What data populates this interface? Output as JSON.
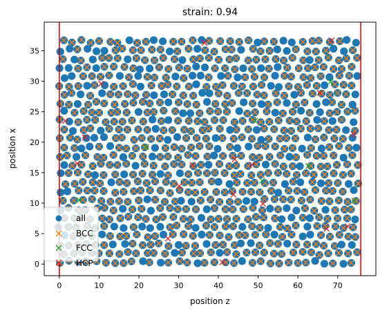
{
  "chart_data": {
    "type": "scatter",
    "title": "strain: 0.94",
    "xlabel": "position z",
    "ylabel": "position x",
    "xlim": [
      -3.8,
      79.6
    ],
    "ylim": [
      -1.9,
      39.7
    ],
    "xticks": [
      0,
      10,
      20,
      30,
      40,
      50,
      60,
      70
    ],
    "yticks": [
      0,
      5,
      10,
      15,
      20,
      25,
      30,
      35
    ],
    "grid": false,
    "legend_position": "lower-left",
    "boundary_lines": {
      "x": [
        0,
        75.8
      ],
      "color": "#cc0000"
    },
    "lattice": {
      "z_start": 0,
      "z_end": 75.8,
      "z_step": 2.3,
      "x_start": 0.3,
      "x_end": 37.8,
      "x_step": 1.45
    },
    "series": [
      {
        "name": "all",
        "marker": "circle",
        "color": "#1f77b4",
        "description_points": "generated atoms on lattice"
      },
      {
        "name": "BCC",
        "marker": "x",
        "color": "#ff7f0e"
      },
      {
        "name": "FCC",
        "marker": "x",
        "color": "#2ca02c",
        "points": [
          [
            21.8,
            19.2
          ],
          [
            49.2,
            23.5
          ],
          [
            51.0,
            13.7
          ],
          [
            62.6,
            16.1
          ],
          [
            68.2,
            29.9
          ],
          [
            74.2,
            10.4
          ],
          [
            5.0,
            10.5
          ]
        ]
      },
      {
        "name": "HCP",
        "marker": "x",
        "color": "#d62728",
        "points": [
          [
            1.5,
            23.5
          ],
          [
            6.5,
            20.8
          ],
          [
            4.5,
            16.5
          ],
          [
            10.5,
            29.6
          ],
          [
            27.3,
            4.2
          ],
          [
            30.1,
            12.8
          ],
          [
            33.5,
            16.3
          ],
          [
            36.5,
            36.3
          ],
          [
            41.0,
            0.3
          ],
          [
            43.8,
            11.4
          ],
          [
            44.1,
            17.2
          ],
          [
            48.5,
            16.3
          ],
          [
            51.2,
            9.9
          ],
          [
            65.5,
            28.1
          ],
          [
            67.2,
            5.8
          ],
          [
            68.5,
            36.7
          ],
          [
            72.5,
            6.2
          ],
          [
            74.0,
            21.3
          ]
        ]
      }
    ]
  }
}
